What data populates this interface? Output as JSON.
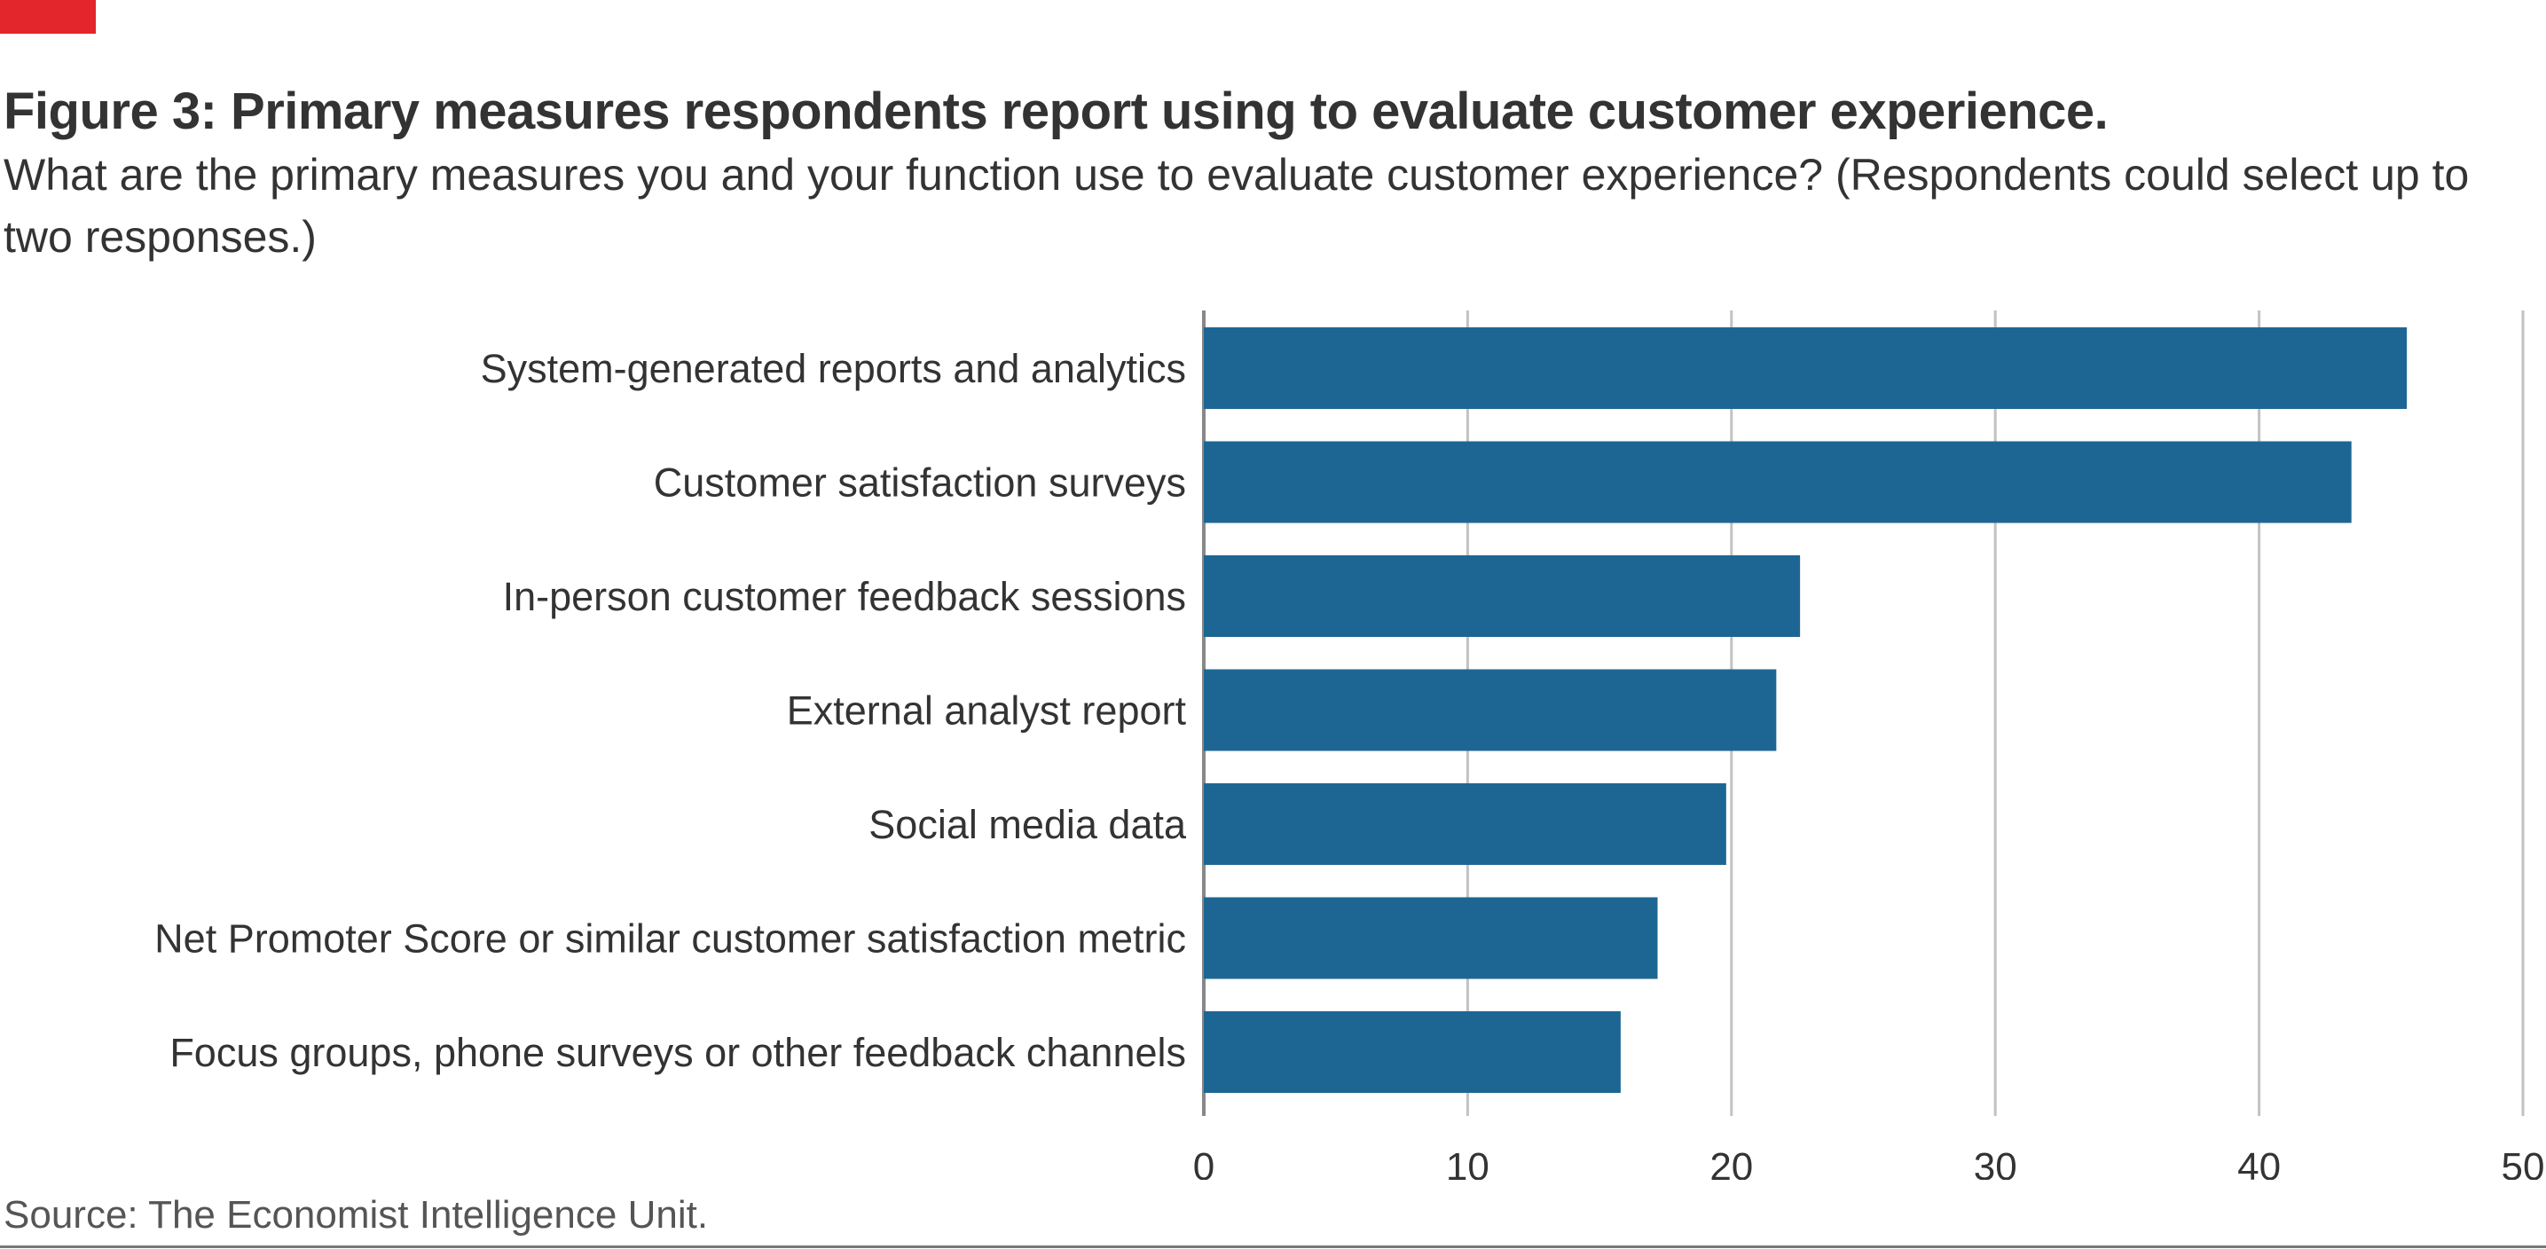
{
  "title": "Figure 3: Primary measures respondents report using to evaluate customer experience.",
  "subtitle": "What are the primary measures you and your function use to evaluate customer experience? (Respondents could select up to two responses.)",
  "source": "Source: The Economist Intelligence Unit.",
  "colors": {
    "accent_tag": "#e3262b",
    "bar": "#1d6693",
    "grid": "#c2c2c2",
    "axis": "#888888",
    "text": "#333333"
  },
  "chart_data": {
    "type": "bar",
    "orientation": "horizontal",
    "categories": [
      "System-generated reports and analytics",
      "Customer satisfaction surveys",
      "In-person customer feedback sessions",
      "External analyst report",
      "Social media data",
      "Net Promoter Score or similar customer satisfaction metric",
      "Focus groups, phone surveys or other feedback channels"
    ],
    "values": [
      45.6,
      43.5,
      22.6,
      21.7,
      19.8,
      17.2,
      15.8
    ],
    "xlim": [
      0,
      50
    ],
    "xticks": [
      0,
      10,
      20,
      30,
      40,
      50
    ],
    "xlabel": "",
    "ylabel": "",
    "grid": "vertical",
    "legend": "none"
  }
}
